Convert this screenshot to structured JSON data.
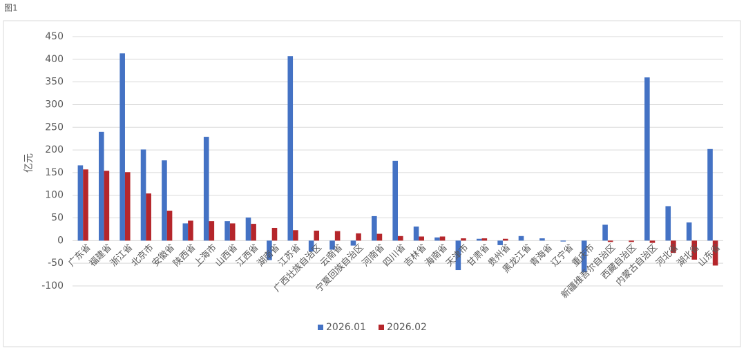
{
  "chart_data": {
    "type": "bar",
    "figure_label": "图1",
    "y_label": "亿元",
    "categories": [
      "广东省",
      "福建省",
      "浙江省",
      "北京市",
      "安徽省",
      "陕西省",
      "上海市",
      "山西省",
      "江西省",
      "湖南省",
      "江苏省",
      "广西壮族自治区",
      "云南省",
      "宁夏回族自治区",
      "河南省",
      "四川省",
      "吉林省",
      "海南省",
      "天津市",
      "甘肃省",
      "贵州省",
      "黑龙江省",
      "青海省",
      "辽宁省",
      "重庆市",
      "新疆维吾尔自治区",
      "西藏自治区",
      "内蒙古自治区",
      "河北省",
      "湖北省",
      "山东省"
    ],
    "series": [
      {
        "name": "2026.01",
        "color": "#4472c4",
        "values": [
          166,
          240,
          413,
          201,
          177,
          38,
          229,
          43,
          51,
          -43,
          407,
          -24,
          -20,
          -11,
          54,
          176,
          31,
          7,
          -65,
          4,
          -10,
          10,
          5,
          -2,
          -70,
          35,
          0,
          360,
          76,
          40,
          202
        ]
      },
      {
        "name": "2026.02",
        "color": "#b5262b",
        "values": [
          157,
          154,
          151,
          104,
          66,
          44,
          43,
          38,
          37,
          28,
          23,
          22,
          21,
          16,
          15,
          10,
          9,
          9,
          5,
          5,
          4,
          0,
          0,
          0,
          0,
          -3,
          -3,
          -5,
          -27,
          -42,
          -55
        ]
      }
    ],
    "ylim": [
      -100,
      450
    ],
    "yticks": [
      -100,
      -50,
      0,
      50,
      100,
      150,
      200,
      250,
      300,
      350,
      400,
      450
    ],
    "grid": true,
    "legend": "bottom"
  }
}
